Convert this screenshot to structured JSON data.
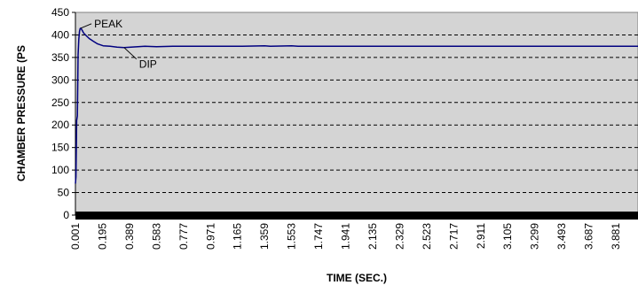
{
  "chart_data": {
    "type": "line",
    "title": "",
    "xlabel": "TIME (SEC.)",
    "ylabel": "CHAMBER PRESSURE (PS",
    "ylim": [
      0,
      450
    ],
    "xlim": [
      0.001,
      4.04
    ],
    "y_ticks": [
      0,
      50,
      100,
      150,
      200,
      250,
      300,
      350,
      400,
      450
    ],
    "x_ticks": [
      "0.001",
      "0.195",
      "0.389",
      "0.583",
      "0.777",
      "0.971",
      "1.165",
      "1.359",
      "1.553",
      "1.747",
      "1.941",
      "2.135",
      "2.329",
      "2.523",
      "2.717",
      "2.911",
      "3.105",
      "3.299",
      "3.493",
      "3.687",
      "3.881"
    ],
    "grid": "horizontal dashed",
    "plot_background": "#d4d4d4",
    "line_color": "#000080",
    "series": [
      {
        "x": [
          0.001,
          0.005,
          0.01,
          0.015,
          0.02,
          0.025,
          0.03,
          0.035,
          0.04,
          0.05,
          0.06,
          0.08,
          0.1,
          0.13,
          0.16,
          0.2,
          0.25,
          0.3,
          0.35,
          0.4,
          0.45,
          0.5,
          0.583,
          0.7,
          0.8,
          1.0,
          1.2,
          1.359,
          1.4,
          1.553,
          1.6,
          1.8,
          2.0,
          2.2,
          2.5,
          2.8,
          3.1,
          3.4,
          3.7,
          3.881,
          4.04
        ],
        "y": [
          70,
          85,
          210,
          220,
          355,
          390,
          408,
          414,
          415,
          410,
          404,
          398,
          392,
          386,
          380,
          376,
          375,
          373,
          372,
          373,
          374,
          375,
          374,
          375,
          375,
          375,
          375,
          376,
          375,
          376,
          375,
          375,
          375,
          375,
          375,
          375,
          375,
          375,
          375,
          375,
          375
        ]
      }
    ],
    "annotations": [
      {
        "text": "PEAK",
        "x": 0.04,
        "y": 415
      },
      {
        "text": "DIP",
        "x": 0.35,
        "y": 372
      }
    ]
  }
}
